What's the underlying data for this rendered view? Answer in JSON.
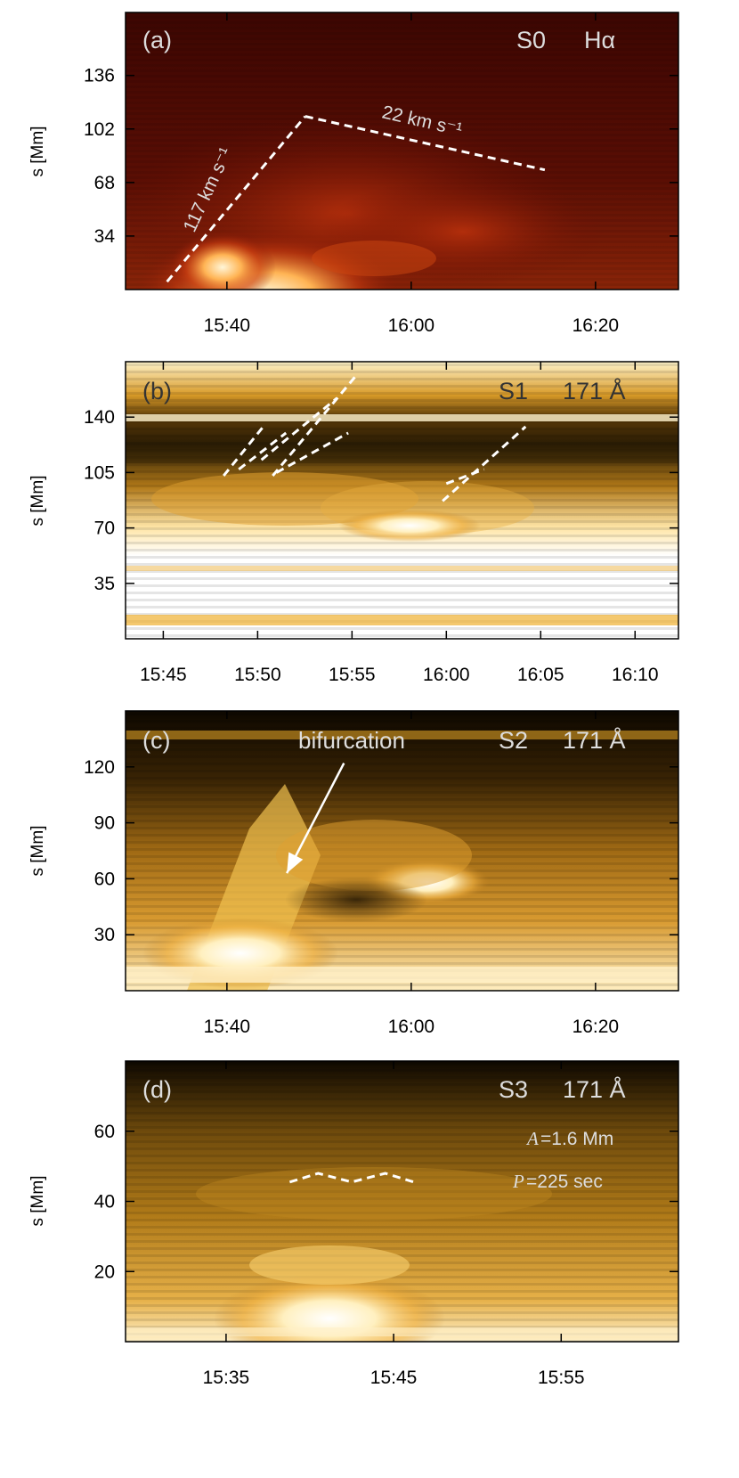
{
  "chart_data": [
    {
      "type": "heatmap",
      "panel_label": "(a)",
      "slit": "S0",
      "channel": "Hα",
      "ylabel": "s [Mm]",
      "x_ticks": [
        "15:40",
        "16:00",
        "16:20"
      ],
      "x_tick_values_min": [
        40,
        60,
        80
      ],
      "xlim_min": [
        29,
        89
      ],
      "y_ticks": [
        34,
        68,
        102,
        136
      ],
      "ylim": [
        0,
        176
      ],
      "colormap": "hot",
      "tracks": [
        {
          "label": "117 km s⁻¹",
          "points": [
            [
              33.5,
              5
            ],
            [
              48.5,
              110
            ]
          ]
        },
        {
          "label": "22 km s⁻¹",
          "points": [
            [
              48.5,
              110
            ],
            [
              74.5,
              76
            ]
          ]
        }
      ]
    },
    {
      "type": "heatmap",
      "panel_label": "(b)",
      "slit": "S1",
      "channel": "171 Å",
      "ylabel": "s [Mm]",
      "x_ticks": [
        "15:45",
        "15:50",
        "15:55",
        "16:00",
        "16:05",
        "16:10"
      ],
      "x_tick_values_min": [
        45,
        50,
        55,
        60,
        65,
        70
      ],
      "xlim_min": [
        43,
        72.3
      ],
      "y_ticks": [
        35,
        70,
        105,
        140
      ],
      "ylim": [
        0,
        175
      ],
      "colormap": "gold",
      "tracks": [
        {
          "points": [
            [
              48.2,
              103
            ],
            [
              50.3,
              134
            ]
          ]
        },
        {
          "points": [
            [
              49.0,
              107
            ],
            [
              51.5,
              130
            ]
          ]
        },
        {
          "points": [
            [
              50.2,
              113
            ],
            [
              54.2,
              152
            ]
          ]
        },
        {
          "points": [
            [
              50.8,
              103
            ],
            [
              55.2,
              166
            ]
          ]
        },
        {
          "points": [
            [
              51.0,
              105
            ],
            [
              54.8,
              130
            ]
          ]
        },
        {
          "points": [
            [
              59.8,
              87
            ],
            [
              64.2,
              134
            ]
          ]
        },
        {
          "points": [
            [
              60.0,
              98
            ],
            [
              62.0,
              107
            ]
          ]
        }
      ]
    },
    {
      "type": "heatmap",
      "panel_label": "(c)",
      "slit": "S2",
      "channel": "171 Å",
      "ylabel": "s [Mm]",
      "x_ticks": [
        "15:40",
        "16:00",
        "16:20"
      ],
      "x_tick_values_min": [
        40,
        60,
        80
      ],
      "xlim_min": [
        29,
        89
      ],
      "y_ticks": [
        30,
        60,
        90,
        120
      ],
      "ylim": [
        0,
        150
      ],
      "colormap": "gold",
      "annotation": {
        "text": "bifurcation",
        "arrow_from": [
          52.7,
          122
        ],
        "arrow_to": [
          46.5,
          63
        ]
      }
    },
    {
      "type": "heatmap",
      "panel_label": "(d)",
      "slit": "S3",
      "channel": "171 Å",
      "ylabel": "s [Mm]",
      "x_ticks": [
        "15:35",
        "15:45",
        "15:55"
      ],
      "x_tick_values_min": [
        35,
        45,
        55
      ],
      "xlim_min": [
        29,
        62
      ],
      "y_ticks": [
        20,
        40,
        60
      ],
      "ylim": [
        0,
        80
      ],
      "colormap": "gold",
      "amplitude": {
        "symbol": "A",
        "value": "=1.6 Mm"
      },
      "period": {
        "symbol": "P",
        "value": "=225 sec"
      },
      "tracks": [
        {
          "points": [
            [
              38.8,
              45.5
            ],
            [
              40.5,
              48.0
            ],
            [
              42.5,
              45.5
            ],
            [
              44.5,
              48.0
            ],
            [
              46.2,
              45.5
            ]
          ]
        }
      ]
    }
  ]
}
